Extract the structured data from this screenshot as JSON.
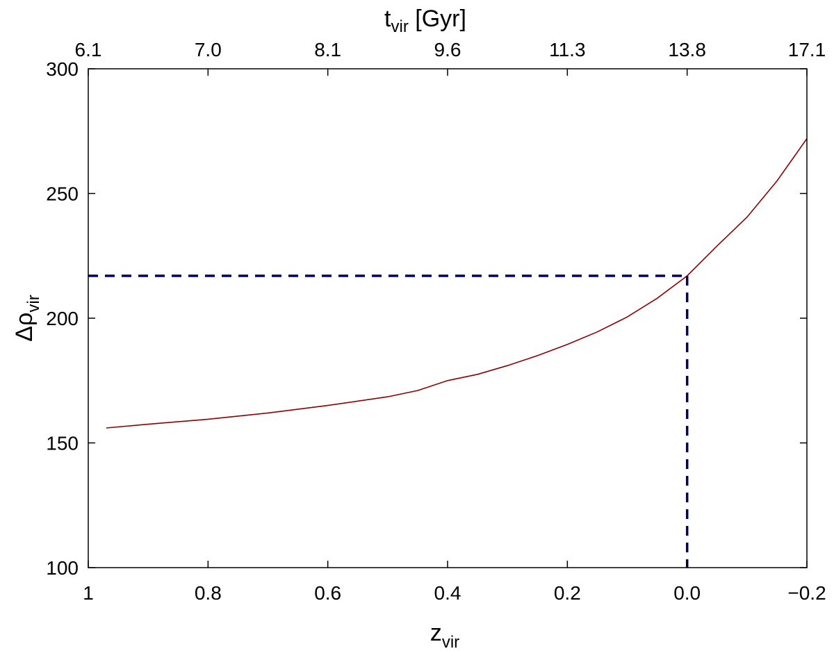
{
  "chart_data": {
    "type": "line",
    "xlabel": "z",
    "xlabel_sub": "vir",
    "ylabel": "Δρ",
    "ylabel_sub": "vir",
    "x2label": "t",
    "x2label_sub": "vir",
    "x2label_suffix": " [Gyr]",
    "xlim": [
      1,
      -0.2
    ],
    "ylim": [
      100,
      300
    ],
    "x_ticks": [
      1,
      0.8,
      0.6,
      0.4,
      0.2,
      0.0,
      -0.2
    ],
    "x_tick_labels": [
      "1",
      "0.8",
      "0.6",
      "0.4",
      "0.2",
      "0.0",
      "−0.2"
    ],
    "x2_tick_labels": [
      "6.1",
      "7.0",
      "8.1",
      "9.6",
      "11.3",
      "13.8",
      "17.1"
    ],
    "y_ticks": [
      100,
      150,
      200,
      250,
      300
    ],
    "y_tick_labels": [
      "100",
      "150",
      "200",
      "250",
      "300"
    ],
    "grid": false,
    "series": [
      {
        "color": "#8b0000",
        "style": "solid",
        "x": [
          0.97,
          0.9,
          0.8,
          0.7,
          0.6,
          0.5,
          0.45,
          0.4,
          0.35,
          0.3,
          0.25,
          0.2,
          0.15,
          0.1,
          0.05,
          0.0,
          -0.05,
          -0.1,
          -0.15,
          -0.2
        ],
        "y": [
          156,
          157.5,
          159.5,
          162,
          165,
          168.5,
          171,
          175,
          177.5,
          181,
          185,
          189.5,
          194.5,
          200.5,
          208,
          217,
          229,
          240.5,
          255,
          272
        ]
      },
      {
        "color": "#000066",
        "style": "dashed",
        "x": [
          1,
          0.0
        ],
        "y": [
          217,
          217
        ]
      },
      {
        "color": "#000066",
        "style": "dashed",
        "x": [
          0.0,
          0.0
        ],
        "y": [
          217,
          100
        ]
      }
    ]
  }
}
